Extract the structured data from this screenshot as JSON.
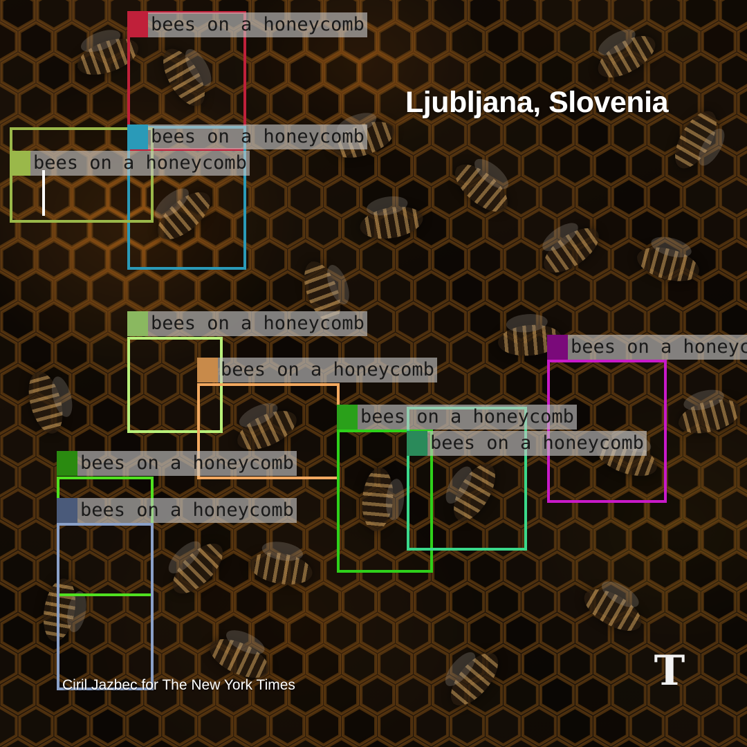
{
  "caption": {
    "location": "Ljubljana, Slovenia",
    "credit": "Ciril Jazbec for The New York Times",
    "logo": "T"
  },
  "detections": [
    {
      "label": "bees on a honeycomb",
      "color": "#c0203a",
      "swatch": "#c0203a"
    },
    {
      "label": "bees on a honeycomb",
      "color": "#2a9ab8",
      "swatch": "#2a9ab8"
    },
    {
      "label": "bees on a honeycomb",
      "color": "#9ab84a",
      "swatch": "#9ab84a"
    },
    {
      "label": "bees on a honeycomb",
      "color": "#b8f07a",
      "swatch": "#8ab860"
    },
    {
      "label": "bees on a honeycomb",
      "color": "#f2a860",
      "swatch": "#c88a4a"
    },
    {
      "label": "bees on a honeycomb",
      "color": "#2ed01a",
      "swatch": "#2aa01a"
    },
    {
      "label": "bees on a honeycomb",
      "color": "#3ad88a",
      "swatch": "#2a8a5a"
    },
    {
      "label": "bees on a honeycomb",
      "color": "#c81ac8",
      "swatch": "#7a0a7a"
    },
    {
      "label": "bees on a honeycomb",
      "color": "#50e020",
      "swatch": "#2a8a10"
    },
    {
      "label": "bees on a honeycomb",
      "color": "#8aa0c8",
      "swatch": "#4a5a7a"
    }
  ]
}
